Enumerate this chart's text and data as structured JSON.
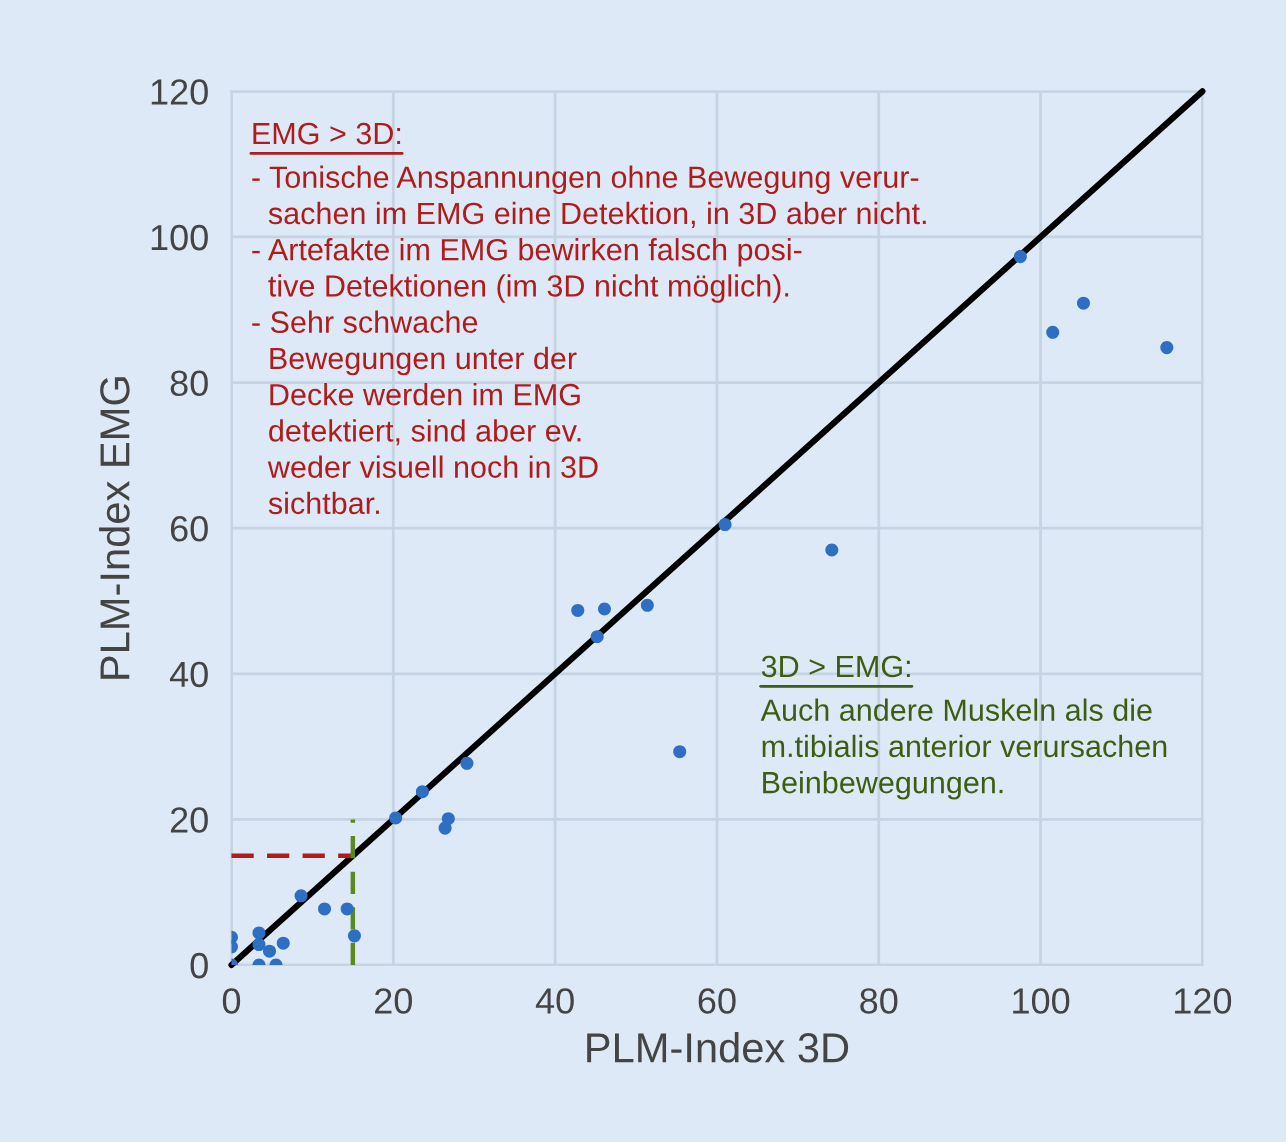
{
  "chart_data": {
    "type": "scatter",
    "xlabel": "PLM-Index 3D",
    "ylabel": "PLM-Index EMG",
    "xlim": [
      0,
      120
    ],
    "ylim": [
      0,
      120
    ],
    "xticks": [
      0,
      20,
      40,
      60,
      80,
      100,
      120
    ],
    "yticks": [
      0,
      20,
      40,
      60,
      80,
      100,
      120
    ],
    "grid": true,
    "series": [
      {
        "marker": "circle",
        "color": "#2e6fc4",
        "x": [
          0,
          0,
          0,
          3.4,
          3.4,
          3.4,
          4.7,
          5.5,
          6.4,
          8.6,
          11.5,
          14.3,
          15.2,
          20.3,
          26.4,
          26.8,
          23.6,
          29.1,
          42.8,
          46.1,
          51.4,
          45.2,
          55.4,
          61,
          74.2,
          97.5,
          101.5,
          105.3,
          115.6
        ],
        "values": [
          3.8,
          2.5,
          0,
          4.4,
          2.8,
          0,
          1.9,
          0,
          3.0,
          9.5,
          7.7,
          7.7,
          4.0,
          20.2,
          18.8,
          20.1,
          23.8,
          27.7,
          48.7,
          48.9,
          49.4,
          45.1,
          29.3,
          60.5,
          57.0,
          97.3,
          86.9,
          90.9,
          84.8
        ]
      },
      {
        "type": "line",
        "color": "#000000",
        "x": [
          0,
          120
        ],
        "values": [
          0,
          120
        ],
        "line_style": "solid"
      },
      {
        "type": "line",
        "color": "#b01c1c",
        "x": [
          0,
          15
        ],
        "values": [
          15,
          15
        ],
        "line_style": "dashed"
      },
      {
        "type": "line",
        "color": "#5a8a1e",
        "x": [
          15,
          15
        ],
        "values": [
          0,
          20
        ],
        "line_style": "dashed"
      }
    ],
    "annotations": [
      "EMG > 3D:",
      "- Tonische Anspannungen ohne Bewegung verur-\n  sachen im EMG eine Detektion, in 3D aber nicht.\n- Artefakte im EMG bewirken falsch posi-\n  tive Detektionen (im 3D nicht möglich).\n- Sehr schwache\n  Bewegungen unter der\n  Decke werden im EMG\n  detektiert, sind aber ev.\n  weder visuell noch in 3D\n  sichtbar.",
      "3D > EMG:",
      "Auch andere Muskeln als die\nm.tibialis anterior verursachen\nBeinbewegungen."
    ]
  }
}
